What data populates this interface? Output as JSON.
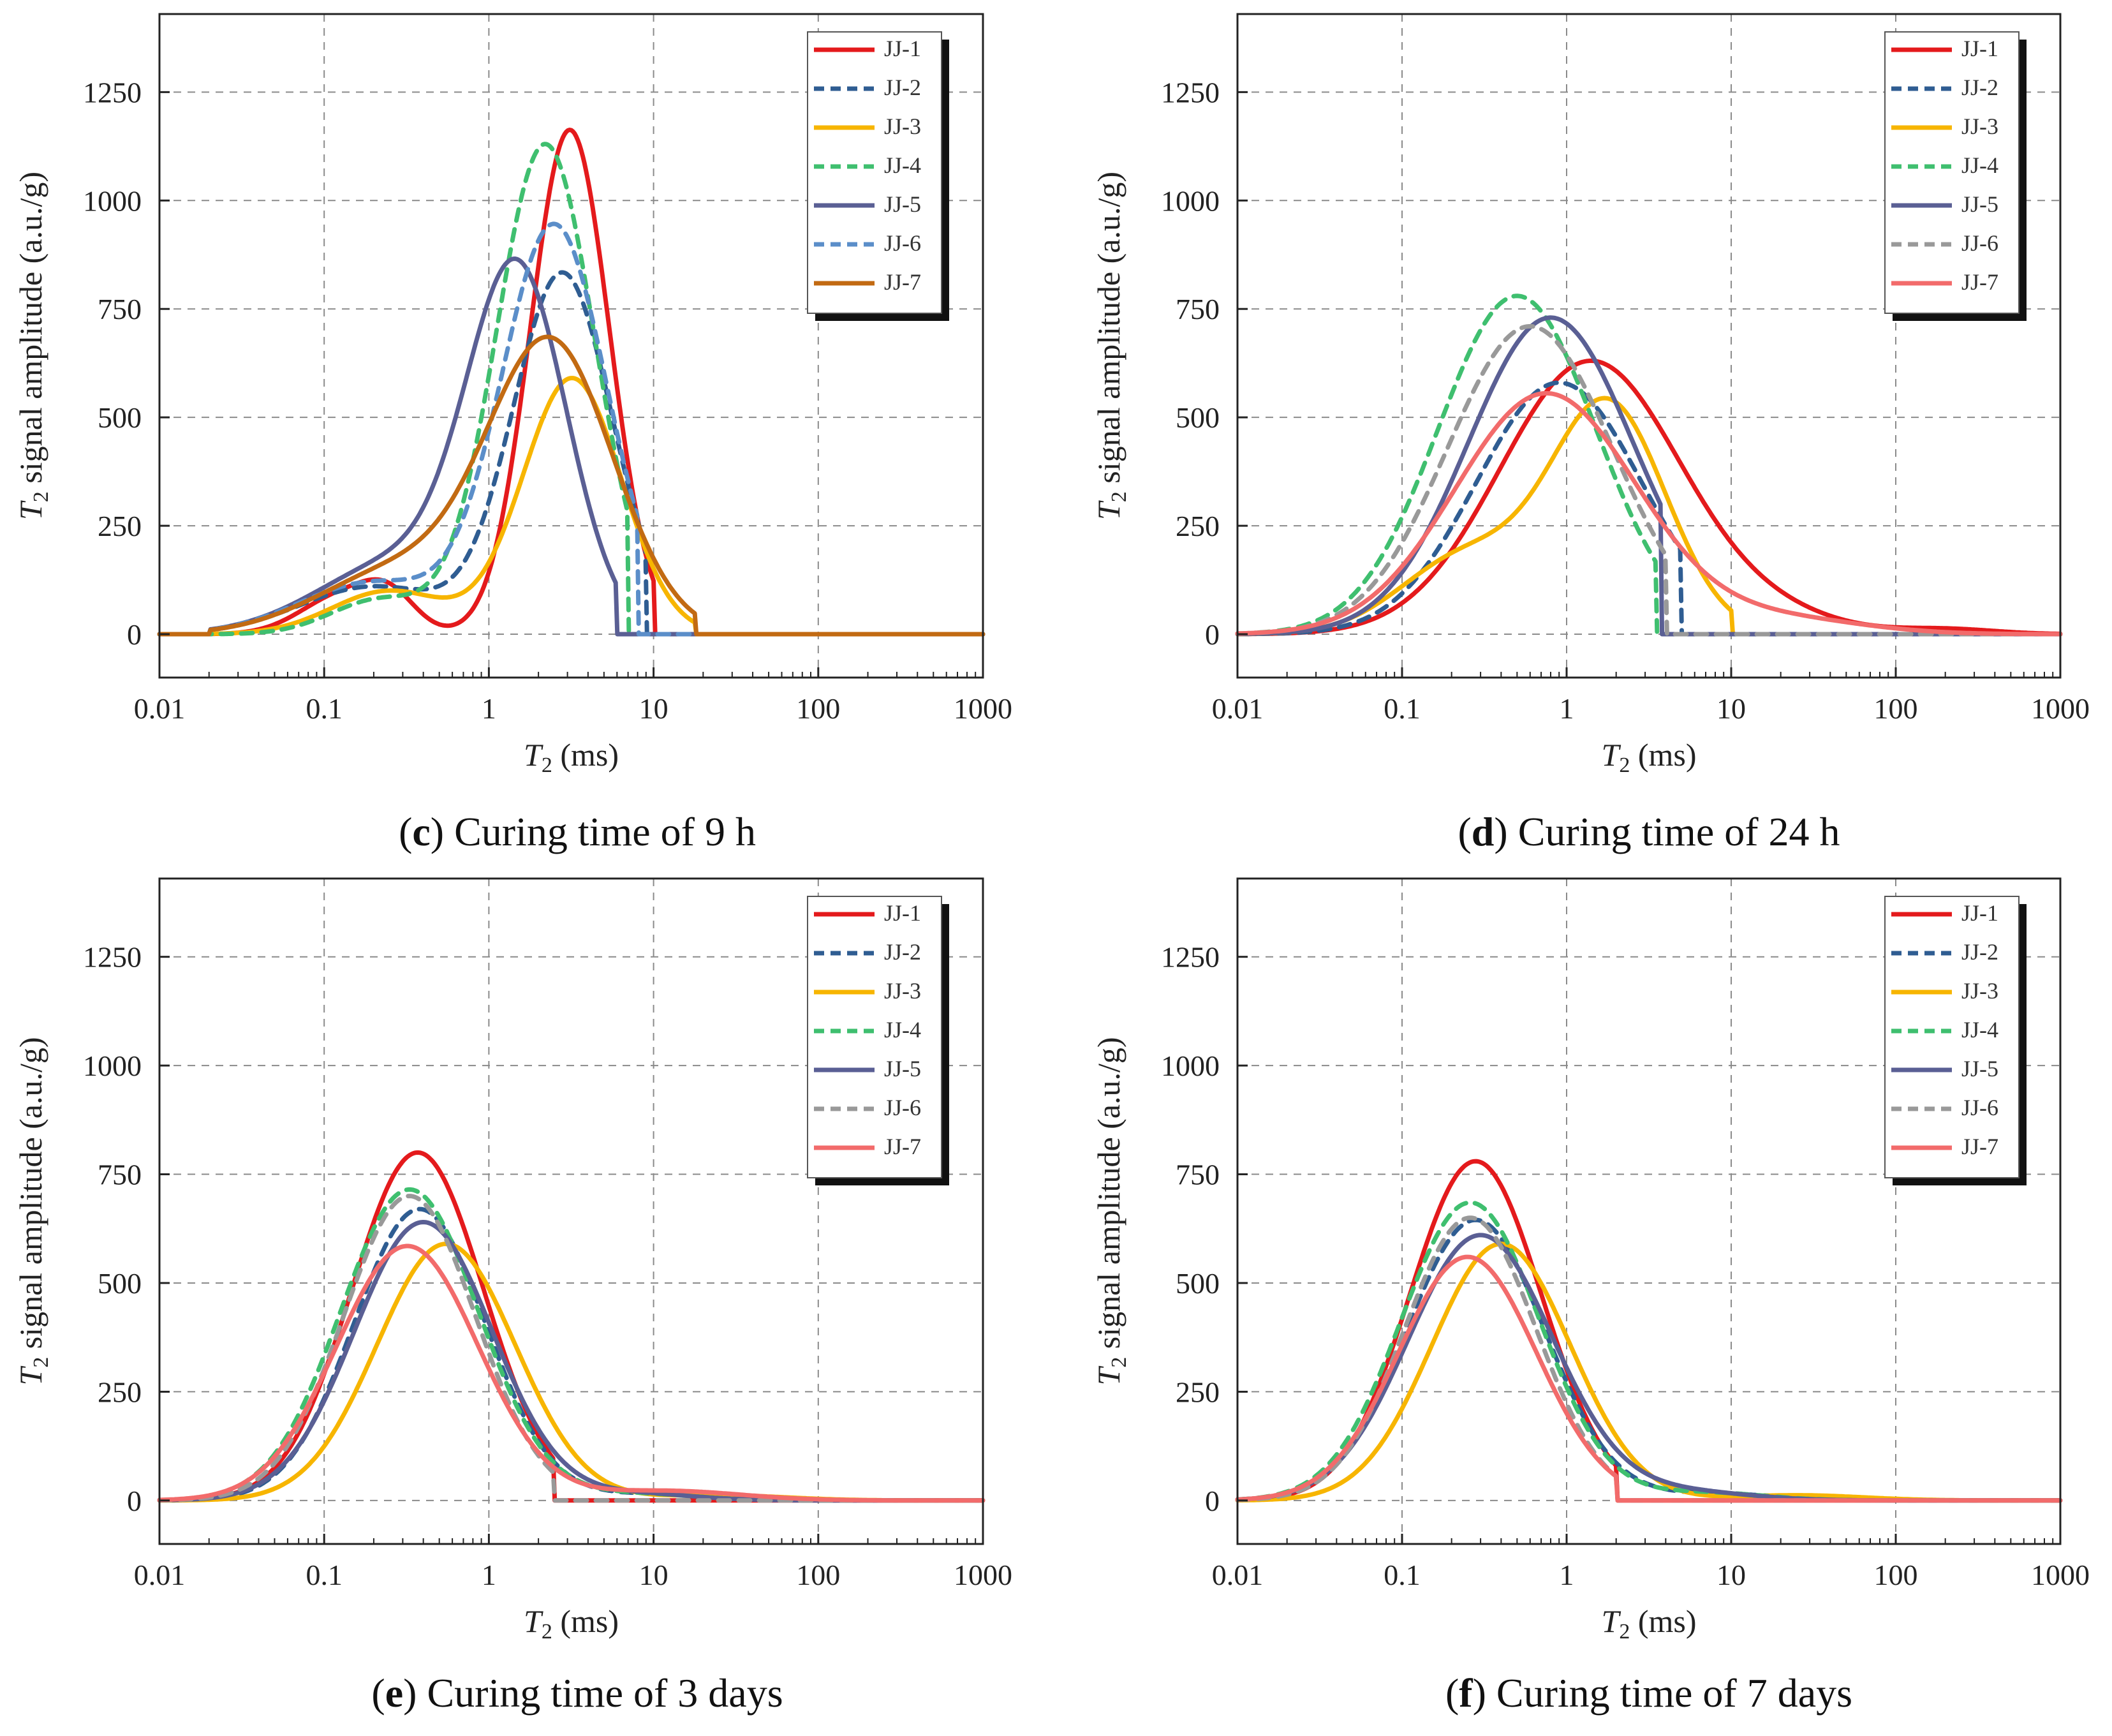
{
  "chart_data": [
    {
      "panel": "c",
      "type": "line",
      "caption_letter": "c",
      "caption_text": "Curing time of 9 h",
      "xlabel_main": "T",
      "xlabel_sub": "2",
      "xlabel_unit": " (ms)",
      "ylabel_main": "T",
      "ylabel_sub": "2",
      "ylabel_rest": " signal amplitude (a.u./g)",
      "xscale": "log",
      "xlim": [
        0.01,
        1000
      ],
      "ylim": [
        -100,
        1430
      ],
      "xticks": [
        "0.01",
        "0.1",
        "1",
        "10",
        "100",
        "1000"
      ],
      "yticks": [
        "0",
        "250",
        "500",
        "750",
        "1000",
        "1250"
      ],
      "grid": true,
      "legend_position": "top-right",
      "series": [
        {
          "name": "JJ-1",
          "color": "#e41a1c",
          "dash": false,
          "shape": "mix",
          "peaks": [
            [
              0.13,
              90,
              0.25
            ],
            [
              0.25,
              70,
              0.16
            ],
            [
              3.1,
              1163,
              0.24
            ]
          ],
          "extent": [
            0.02,
            10
          ]
        },
        {
          "name": "JJ-2",
          "color": "#2f5d92",
          "dash": true,
          "shape": "mix",
          "peaks": [
            [
              0.2,
              110,
              0.45
            ],
            [
              2.8,
              830,
              0.3
            ]
          ],
          "extent": [
            0.02,
            9
          ]
        },
        {
          "name": "JJ-3",
          "color": "#f7b500",
          "dash": false,
          "shape": "mix",
          "peaks": [
            [
              0.25,
              100,
              0.35
            ],
            [
              3.2,
              590,
              0.3
            ]
          ],
          "extent": [
            0.02,
            18
          ]
        },
        {
          "name": "JJ-4",
          "color": "#3fbf6f",
          "dash": true,
          "shape": "mix",
          "peaks": [
            [
              0.22,
              80,
              0.3
            ],
            [
              2.2,
              1130,
              0.3
            ]
          ],
          "extent": [
            0.02,
            7
          ]
        },
        {
          "name": "JJ-5",
          "color": "#5a5f94",
          "dash": false,
          "shape": "mix",
          "peaks": [
            [
              0.3,
              170,
              0.5
            ],
            [
              1.5,
              800,
              0.3
            ]
          ],
          "extent": [
            0.02,
            6
          ]
        },
        {
          "name": "JJ-6",
          "color": "#5b8ec9",
          "dash": true,
          "shape": "mix",
          "peaks": [
            [
              0.2,
              120,
              0.45
            ],
            [
              2.5,
              940,
              0.32
            ]
          ],
          "extent": [
            0.02,
            8
          ]
        },
        {
          "name": "JJ-7",
          "color": "#c26a12",
          "dash": false,
          "shape": "mix",
          "peaks": [
            [
              0.3,
              150,
              0.5
            ],
            [
              2.4,
              655,
              0.38
            ]
          ],
          "extent": [
            0.02,
            18
          ]
        }
      ]
    },
    {
      "panel": "d",
      "type": "line",
      "caption_letter": "d",
      "caption_text": "Curing time of 24 h",
      "xlabel_main": "T",
      "xlabel_sub": "2",
      "xlabel_unit": " (ms)",
      "ylabel_main": "T",
      "ylabel_sub": "2",
      "ylabel_rest": " signal amplitude (a.u./g)",
      "xscale": "log",
      "xlim": [
        0.01,
        1000
      ],
      "ylim": [
        -100,
        1430
      ],
      "xticks": [
        "0.01",
        "0.1",
        "1",
        "10",
        "100",
        "1000"
      ],
      "yticks": [
        "0",
        "250",
        "500",
        "750",
        "1000",
        "1250"
      ],
      "grid": true,
      "legend_position": "top-right",
      "series": [
        {
          "name": "JJ-1",
          "color": "#e41a1c",
          "dash": false,
          "shape": "mix",
          "peaks": [
            [
              1.4,
              630,
              0.55
            ],
            [
              20,
              30,
              0.4
            ],
            [
              200,
              12,
              0.3
            ]
          ],
          "extent": [
            0.01,
            1000
          ]
        },
        {
          "name": "JJ-2",
          "color": "#2f5d92",
          "dash": true,
          "shape": "mix",
          "peaks": [
            [
              0.9,
              580,
              0.5
            ]
          ],
          "extent": [
            0.01,
            5
          ]
        },
        {
          "name": "JJ-3",
          "color": "#f7b500",
          "dash": false,
          "shape": "mix",
          "peaks": [
            [
              0.25,
              180,
              0.4
            ],
            [
              1.8,
              525,
              0.35
            ]
          ],
          "extent": [
            0.01,
            10
          ]
        },
        {
          "name": "JJ-4",
          "color": "#3fbf6f",
          "dash": true,
          "shape": "mix",
          "peaks": [
            [
              0.5,
              780,
              0.48
            ]
          ],
          "extent": [
            0.01,
            3.5
          ]
        },
        {
          "name": "JJ-5",
          "color": "#5a5f94",
          "dash": false,
          "shape": "mix",
          "peaks": [
            [
              0.8,
              730,
              0.5
            ]
          ],
          "extent": [
            0.01,
            3.8
          ]
        },
        {
          "name": "JJ-6",
          "color": "#999999",
          "dash": true,
          "shape": "mix",
          "peaks": [
            [
              0.6,
              710,
              0.5
            ]
          ],
          "extent": [
            0.01,
            4
          ]
        },
        {
          "name": "JJ-7",
          "color": "#f26b6b",
          "dash": false,
          "shape": "mix",
          "peaks": [
            [
              0.75,
              555,
              0.55
            ],
            [
              20,
              35,
              0.5
            ]
          ],
          "extent": [
            0.01,
            1000
          ]
        }
      ]
    },
    {
      "panel": "e",
      "type": "line",
      "caption_letter": "e",
      "caption_text": "Curing time of 3 days",
      "xlabel_main": "T",
      "xlabel_sub": "2",
      "xlabel_unit": " (ms)",
      "ylabel_main": "T",
      "ylabel_sub": "2",
      "ylabel_rest": " signal amplitude (a.u./g)",
      "xscale": "log",
      "xlim": [
        0.01,
        1000
      ],
      "ylim": [
        -100,
        1430
      ],
      "xticks": [
        "0.01",
        "0.1",
        "1",
        "10",
        "100",
        "1000"
      ],
      "yticks": [
        "0",
        "250",
        "500",
        "750",
        "1000",
        "1250"
      ],
      "grid": true,
      "legend_position": "top-right",
      "series": [
        {
          "name": "JJ-1",
          "color": "#e41a1c",
          "dash": false,
          "shape": "mix",
          "peaks": [
            [
              0.37,
              800,
              0.4
            ]
          ],
          "extent": [
            0.01,
            2.5
          ]
        },
        {
          "name": "JJ-2",
          "color": "#2f5d92",
          "dash": true,
          "shape": "mix",
          "peaks": [
            [
              0.38,
              670,
              0.4
            ],
            [
              10,
              15,
              0.4
            ]
          ],
          "extent": [
            0.01,
            1000
          ]
        },
        {
          "name": "JJ-3",
          "color": "#f7b500",
          "dash": false,
          "shape": "mix",
          "peaks": [
            [
              0.55,
              590,
              0.42
            ],
            [
              25,
              12,
              0.4
            ]
          ],
          "extent": [
            0.01,
            1000
          ]
        },
        {
          "name": "JJ-4",
          "color": "#3fbf6f",
          "dash": true,
          "shape": "mix",
          "peaks": [
            [
              0.33,
              715,
              0.42
            ],
            [
              8,
              15,
              0.35
            ]
          ],
          "extent": [
            0.01,
            1000
          ]
        },
        {
          "name": "JJ-5",
          "color": "#5a5f94",
          "dash": false,
          "shape": "mix",
          "peaks": [
            [
              0.4,
              640,
              0.42
            ],
            [
              8,
              15,
              0.35
            ]
          ],
          "extent": [
            0.01,
            1000
          ]
        },
        {
          "name": "JJ-6",
          "color": "#999999",
          "dash": true,
          "shape": "mix",
          "peaks": [
            [
              0.33,
              700,
              0.4
            ]
          ],
          "extent": [
            0.01,
            2.5
          ]
        },
        {
          "name": "JJ-7",
          "color": "#f26b6b",
          "dash": false,
          "shape": "mix",
          "peaks": [
            [
              0.32,
              585,
              0.43
            ],
            [
              12,
              22,
              0.45
            ]
          ],
          "extent": [
            0.01,
            1000
          ]
        }
      ]
    },
    {
      "panel": "f",
      "type": "line",
      "caption_letter": "f",
      "caption_text": "Curing time of 7 days",
      "xlabel_main": "T",
      "xlabel_sub": "2",
      "xlabel_unit": " (ms)",
      "ylabel_main": "T",
      "ylabel_sub": "2",
      "ylabel_rest": " signal amplitude (a.u./g)",
      "xscale": "log",
      "xlim": [
        0.01,
        1000
      ],
      "ylim": [
        -100,
        1430
      ],
      "xticks": [
        "0.01",
        "0.1",
        "1",
        "10",
        "100",
        "1000"
      ],
      "yticks": [
        "0",
        "250",
        "500",
        "750",
        "1000",
        "1250"
      ],
      "grid": true,
      "legend_position": "top-right",
      "series": [
        {
          "name": "JJ-1",
          "color": "#e41a1c",
          "dash": false,
          "shape": "mix",
          "peaks": [
            [
              0.28,
              780,
              0.4
            ]
          ],
          "extent": [
            0.01,
            2
          ]
        },
        {
          "name": "JJ-2",
          "color": "#2f5d92",
          "dash": true,
          "shape": "mix",
          "peaks": [
            [
              0.28,
              645,
              0.42
            ],
            [
              8,
              15,
              0.4
            ]
          ],
          "extent": [
            0.01,
            1000
          ]
        },
        {
          "name": "JJ-3",
          "color": "#f7b500",
          "dash": false,
          "shape": "mix",
          "peaks": [
            [
              0.4,
              590,
              0.42
            ],
            [
              25,
              12,
              0.4
            ]
          ],
          "extent": [
            0.01,
            1000
          ]
        },
        {
          "name": "JJ-4",
          "color": "#3fbf6f",
          "dash": true,
          "shape": "mix",
          "peaks": [
            [
              0.26,
              685,
              0.42
            ],
            [
              7,
              18,
              0.35
            ]
          ],
          "extent": [
            0.01,
            1000
          ]
        },
        {
          "name": "JJ-5",
          "color": "#5a5f94",
          "dash": false,
          "shape": "mix",
          "peaks": [
            [
              0.3,
              610,
              0.44
            ],
            [
              5,
              20,
              0.4
            ]
          ],
          "extent": [
            0.01,
            1000
          ]
        },
        {
          "name": "JJ-6",
          "color": "#999999",
          "dash": true,
          "shape": "mix",
          "peaks": [
            [
              0.26,
              650,
              0.4
            ]
          ],
          "extent": [
            0.01,
            2
          ]
        },
        {
          "name": "JJ-7",
          "color": "#f26b6b",
          "dash": false,
          "shape": "mix",
          "peaks": [
            [
              0.25,
              560,
              0.42
            ]
          ],
          "extent": [
            0.01,
            2
          ]
        }
      ]
    }
  ]
}
